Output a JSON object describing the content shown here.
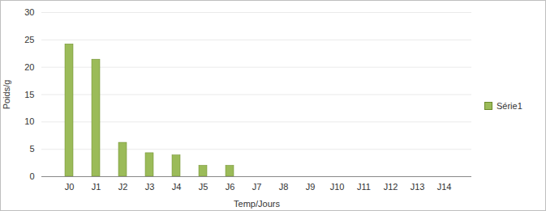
{
  "chart_data": {
    "type": "bar",
    "categories": [
      "J0",
      "J1",
      "J2",
      "J3",
      "J4",
      "J5",
      "J6",
      "J7",
      "J8",
      "J9",
      "J10",
      "J11",
      "J12",
      "J13",
      "J14"
    ],
    "series": [
      {
        "name": "Série1",
        "color": "#9bbb59",
        "values": [
          24.2,
          21.4,
          6.2,
          4.3,
          3.9,
          2.0,
          2.0,
          0,
          0,
          0,
          0,
          0,
          0,
          0,
          0
        ]
      }
    ],
    "x_label": "Temp/Jours",
    "y_label": "Poids/g",
    "ylim": [
      0,
      30
    ],
    "yticks": [
      0,
      5,
      10,
      15,
      20,
      25,
      30
    ],
    "grid": true,
    "legend": "right"
  }
}
